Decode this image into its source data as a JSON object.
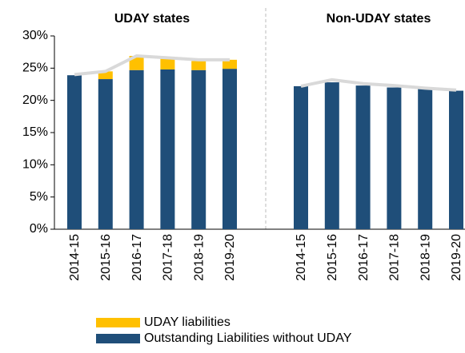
{
  "chart_data": {
    "type": "bar",
    "stacked": true,
    "ylim": [
      0,
      30
    ],
    "yticks": [
      {
        "value": 0,
        "label": "0%"
      },
      {
        "value": 5,
        "label": "5%"
      },
      {
        "value": 10,
        "label": "10%"
      },
      {
        "value": 15,
        "label": "15%"
      },
      {
        "value": 20,
        "label": "20%"
      },
      {
        "value": 25,
        "label": "25%"
      },
      {
        "value": 30,
        "label": "30%"
      }
    ],
    "panels": [
      {
        "title": "UDAY states",
        "categories": [
          "2014-15",
          "2015-16",
          "2016-17",
          "2017-18",
          "2018-19",
          "2019-20"
        ]
      },
      {
        "title": "Non-UDAY states",
        "categories": [
          "2014-15",
          "2015-16",
          "2016-17",
          "2017-18",
          "2018-19",
          "2019-20"
        ]
      }
    ],
    "series": [
      {
        "name": "Outstanding Liabilities without UDAY",
        "color": "#1f4e79",
        "values": [
          [
            23.9,
            23.3,
            24.7,
            24.8,
            24.7,
            24.9
          ],
          [
            22.2,
            22.8,
            22.3,
            22.0,
            21.8,
            21.5
          ]
        ]
      },
      {
        "name": "UDAY liabilities",
        "color": "#ffc000",
        "values": [
          [
            0,
            1.2,
            2.2,
            1.8,
            1.4,
            1.4
          ],
          [
            0,
            0,
            0,
            0,
            0,
            0
          ]
        ]
      },
      {
        "type": "line",
        "color": "#d9d9d9",
        "values": [
          [
            24.0,
            24.5,
            26.9,
            26.6,
            26.3,
            26.3
          ],
          [
            22.2,
            23.2,
            22.6,
            22.3,
            21.9,
            21.6
          ]
        ]
      }
    ]
  }
}
